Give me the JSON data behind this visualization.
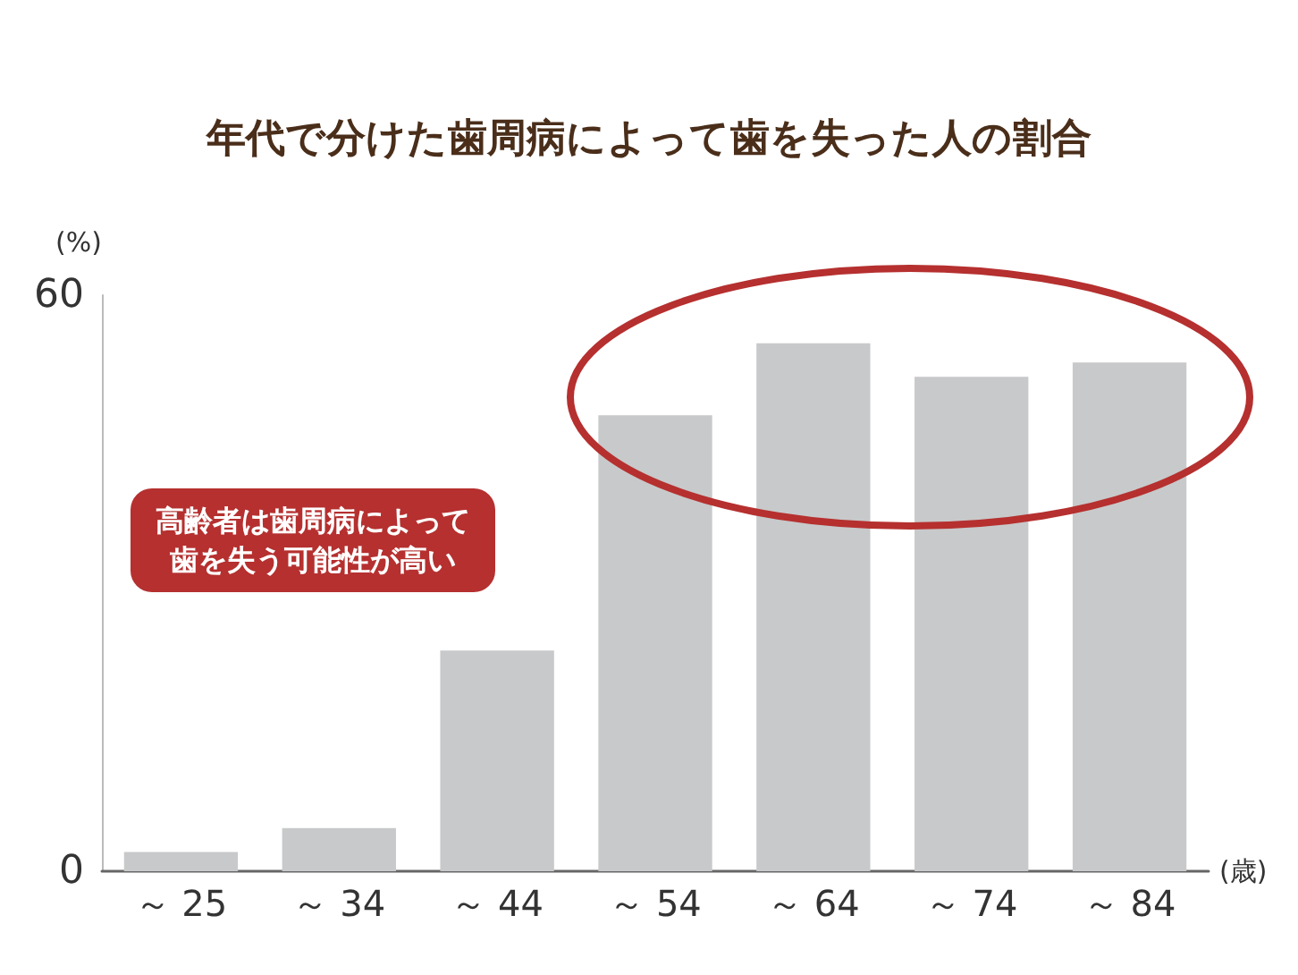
{
  "chart_data": {
    "type": "bar",
    "title": "年代で分けた歯周病によって歯を失った人の割合",
    "ylabel": "(%)",
    "xlabel": "(歳)",
    "categories": [
      "～ 25",
      "～ 34",
      "～ 44",
      "～ 54",
      "～ 64",
      "～ 74",
      "～ 84"
    ],
    "values": [
      2,
      4.5,
      23,
      47.5,
      55,
      51.5,
      53
    ],
    "color": "#c8c9ca",
    "ylim": [
      0,
      60
    ],
    "yticks": [
      0,
      60
    ],
    "grid": false,
    "annotations": [
      "高齢者は歯周病によって",
      "歯を失う可能性が高い"
    ]
  }
}
